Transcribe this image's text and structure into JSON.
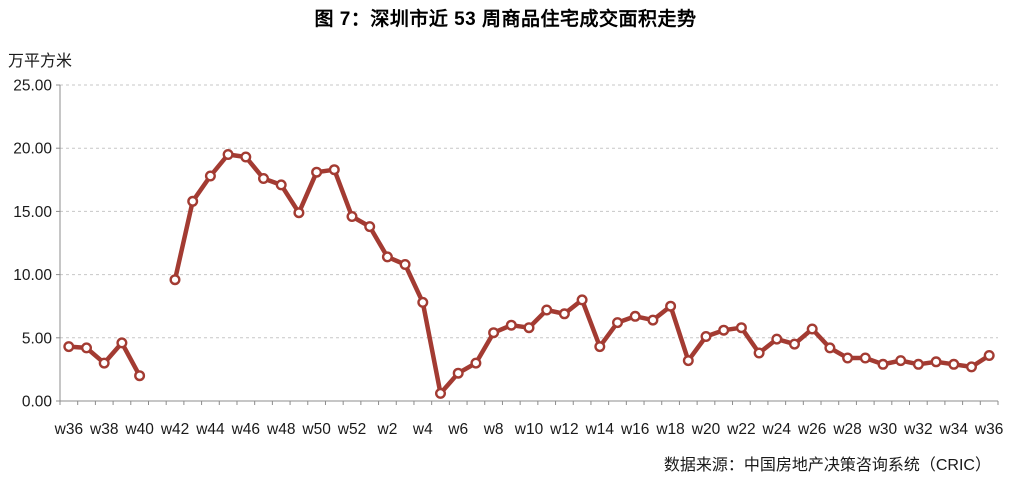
{
  "title": "图 7：深圳市近 53 周商品住宅成交面积走势",
  "footer": {
    "source_text": "数据来源：中国房地产决策咨询系统（CRIC）"
  },
  "colors": {
    "line": "#A33B32",
    "marker_fill": "#FFFFFF",
    "grid": "#C7C7C7",
    "axis": "#8C8C8C",
    "text": "#1A1A1A"
  },
  "chart_data": {
    "type": "line",
    "title": "图 7：深圳市近 53 周商品住宅成交面积走势",
    "ylabel": "万平方米",
    "xlabel": "",
    "ylim": [
      0,
      25
    ],
    "ytick_step": 5,
    "yticks": [
      "0.00",
      "5.00",
      "10.00",
      "15.00",
      "20.00",
      "25.00"
    ],
    "x_label_every": 2,
    "grid": "horizontal-dashed",
    "legend_position": "none",
    "categories": [
      "w36",
      "w37",
      "w38",
      "w39",
      "w40",
      "w41",
      "w42",
      "w43",
      "w44",
      "w45",
      "w46",
      "w47",
      "w48",
      "w49",
      "w50",
      "w51",
      "w52",
      "w1",
      "w2",
      "w3",
      "w4",
      "w5",
      "w6",
      "w7",
      "w8",
      "w9",
      "w10",
      "w11",
      "w12",
      "w13",
      "w14",
      "w15",
      "w16",
      "w17",
      "w18",
      "w19",
      "w20",
      "w21",
      "w22",
      "w23",
      "w24",
      "w25",
      "w26",
      "w27",
      "w28",
      "w29",
      "w30",
      "w31",
      "w32",
      "w33",
      "w34",
      "w35",
      "w36"
    ],
    "series": [
      {
        "name": "商品住宅成交面积",
        "values": [
          4.3,
          4.2,
          3.0,
          4.6,
          2.0,
          null,
          9.6,
          15.8,
          17.8,
          19.5,
          19.3,
          17.6,
          17.1,
          14.9,
          18.1,
          18.3,
          14.6,
          13.8,
          11.4,
          10.8,
          7.8,
          0.6,
          2.2,
          3.0,
          5.4,
          6.0,
          5.8,
          7.2,
          6.9,
          8.0,
          4.3,
          6.2,
          6.7,
          6.4,
          7.5,
          3.2,
          5.1,
          5.6,
          5.8,
          3.8,
          4.9,
          4.5,
          5.7,
          4.2,
          3.4,
          3.4,
          2.9,
          3.2,
          2.9,
          3.1,
          2.9,
          2.7,
          3.6
        ]
      }
    ]
  }
}
